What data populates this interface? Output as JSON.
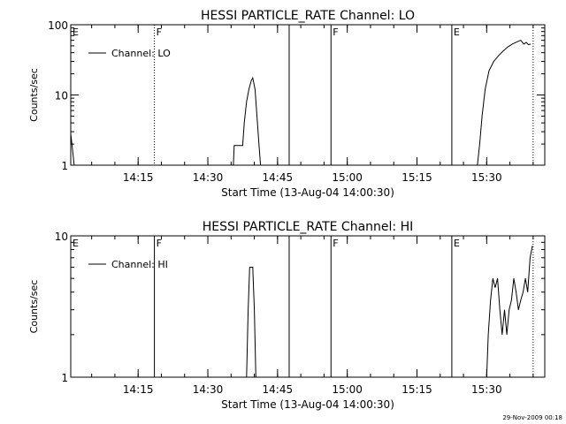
{
  "footer": {
    "timestamp": "29-Nov-2009 00:18"
  },
  "chart_data": [
    {
      "type": "line",
      "title": "HESSI PARTICLE_RATE Channel: LO",
      "xlabel": "Start Time (13-Aug-04 14:00:30)",
      "ylabel": "Counts/sec",
      "y_scale": "log",
      "ylim": [
        1,
        100
      ],
      "xlim": [
        "14:00:30",
        "15:42:30"
      ],
      "x_ticks": [
        "14:15",
        "14:30",
        "14:45",
        "15:00",
        "15:15",
        "15:30"
      ],
      "y_ticks": [
        "1",
        "10",
        "100"
      ],
      "legend": {
        "entries": [
          "Channel: LO"
        ],
        "placement": "top-left"
      },
      "grid": false,
      "markers": [
        {
          "label": "E",
          "time": "14:00:30",
          "style": "solid"
        },
        {
          "label": "F",
          "time": "14:18:30",
          "style": "dotted"
        },
        {
          "label": "",
          "time": "14:47:30",
          "style": "solid"
        },
        {
          "label": "F",
          "time": "14:56:30",
          "style": "solid"
        },
        {
          "label": "E",
          "time": "15:22:30",
          "style": "solid"
        },
        {
          "label": "",
          "time": "15:40:00",
          "style": "dotted"
        }
      ],
      "series": [
        {
          "name": "Channel: LO",
          "segments": [
            [
              [
                "14:00:30",
                2.8
              ],
              [
                "14:00:45",
                2.0
              ],
              [
                "14:01:15",
                1.0
              ]
            ],
            [
              [
                "14:35:30",
                1.0
              ],
              [
                "14:35:40",
                1.9
              ],
              [
                "14:37:30",
                1.9
              ],
              [
                "14:37:50",
                4.0
              ],
              [
                "14:38:20",
                8.0
              ],
              [
                "14:38:50",
                12.0
              ],
              [
                "14:39:20",
                16.0
              ],
              [
                "14:39:40",
                17.5
              ],
              [
                "14:40:10",
                12.0
              ],
              [
                "14:40:40",
                4.0
              ],
              [
                "14:41:00",
                2.0
              ],
              [
                "14:41:20",
                1.0
              ]
            ],
            [
              [
                "15:28:00",
                1.0
              ],
              [
                "15:28:30",
                2.0
              ],
              [
                "15:29:00",
                5.0
              ],
              [
                "15:29:40",
                12.0
              ],
              [
                "15:30:30",
                22.0
              ],
              [
                "15:31:30",
                30.0
              ],
              [
                "15:32:30",
                36.0
              ],
              [
                "15:33:30",
                42.0
              ],
              [
                "15:34:30",
                48.0
              ],
              [
                "15:35:30",
                53.0
              ],
              [
                "15:36:30",
                57.0
              ],
              [
                "15:37:20",
                60.0
              ],
              [
                "15:38:00",
                53.0
              ],
              [
                "15:38:30",
                56.0
              ],
              [
                "15:39:00",
                52.0
              ],
              [
                "15:39:30",
                53.0
              ]
            ]
          ]
        }
      ]
    },
    {
      "type": "line",
      "title": "HESSI PARTICLE_RATE Channel: HI",
      "xlabel": "Start Time (13-Aug-04 14:00:30)",
      "ylabel": "Counts/sec",
      "y_scale": "log",
      "ylim": [
        1,
        10
      ],
      "xlim": [
        "14:00:30",
        "15:42:30"
      ],
      "x_ticks": [
        "14:15",
        "14:30",
        "14:45",
        "15:00",
        "15:15",
        "15:30"
      ],
      "y_ticks": [
        "1",
        "10"
      ],
      "legend": {
        "entries": [
          "Channel: HI"
        ],
        "placement": "top-left"
      },
      "grid": false,
      "markers": [
        {
          "label": "E",
          "time": "14:00:30",
          "style": "solid"
        },
        {
          "label": "F",
          "time": "14:18:30",
          "style": "solid"
        },
        {
          "label": "",
          "time": "14:47:30",
          "style": "solid"
        },
        {
          "label": "F",
          "time": "14:56:30",
          "style": "solid"
        },
        {
          "label": "E",
          "time": "15:22:30",
          "style": "solid"
        },
        {
          "label": "",
          "time": "15:40:00",
          "style": "dotted"
        }
      ],
      "series": [
        {
          "name": "Channel: HI",
          "segments": [
            [
              [
                "14:38:20",
                1.0
              ],
              [
                "14:38:40",
                3.0
              ],
              [
                "14:39:00",
                6.0
              ],
              [
                "14:39:40",
                6.0
              ],
              [
                "14:40:00",
                3.0
              ],
              [
                "14:40:20",
                1.0
              ]
            ],
            [
              [
                "15:30:00",
                1.0
              ],
              [
                "15:30:20",
                2.0
              ],
              [
                "15:30:50",
                3.5
              ],
              [
                "15:31:20",
                5.0
              ],
              [
                "15:31:50",
                4.3
              ],
              [
                "15:32:20",
                5.0
              ],
              [
                "15:32:50",
                3.0
              ],
              [
                "15:33:20",
                2.0
              ],
              [
                "15:33:50",
                3.0
              ],
              [
                "15:34:20",
                2.0
              ],
              [
                "15:34:50",
                3.0
              ],
              [
                "15:35:20",
                3.5
              ],
              [
                "15:35:50",
                5.0
              ],
              [
                "15:36:20",
                4.0
              ],
              [
                "15:36:50",
                3.0
              ],
              [
                "15:37:20",
                3.5
              ],
              [
                "15:37:50",
                4.0
              ],
              [
                "15:38:20",
                5.0
              ],
              [
                "15:38:50",
                4.0
              ],
              [
                "15:39:20",
                7.0
              ],
              [
                "15:39:50",
                8.5
              ]
            ]
          ]
        }
      ]
    }
  ]
}
